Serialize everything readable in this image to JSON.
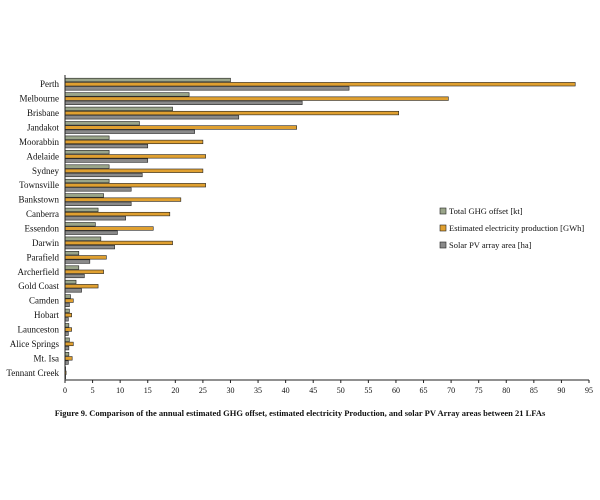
{
  "chart_data": {
    "type": "bar",
    "orientation": "horizontal",
    "categories": [
      "Perth",
      "Melbourne",
      "Brisbane",
      "Jandakot",
      "Moorabbin",
      "Adelaide",
      "Sydney",
      "Townsville",
      "Bankstown",
      "Canberra",
      "Essendon",
      "Darwin",
      "Parafield",
      "Archerfield",
      "Gold Coast",
      "Camden",
      "Hobart",
      "Launceston",
      "Alice Springs",
      "Mt. Isa",
      "Tennant Creek"
    ],
    "series": [
      {
        "name": "Total GHG offset [kt]",
        "color": "#9aa58a",
        "values": [
          30,
          22.5,
          19.5,
          13.5,
          8,
          8,
          8,
          8,
          7,
          6,
          5.5,
          6.5,
          2.5,
          2.5,
          2,
          1,
          0.8,
          0.7,
          0.8,
          0.7,
          0.1
        ]
      },
      {
        "name": "Estimated electricity production [GWh]",
        "color": "#e0a030",
        "values": [
          92.5,
          69.5,
          60.5,
          42,
          25,
          25.5,
          25,
          25.5,
          21,
          19,
          16,
          19.5,
          7.5,
          7,
          6,
          1.5,
          1.2,
          1.2,
          1.5,
          1.3,
          0.2
        ]
      },
      {
        "name": "Solar PV array area [ha]",
        "color": "#8a8a8a",
        "values": [
          51.5,
          43,
          31.5,
          23.5,
          15,
          15,
          14,
          12,
          12,
          11,
          9.5,
          9,
          4.5,
          3.5,
          3,
          0.8,
          0.6,
          0.6,
          0.7,
          0.6,
          0.1
        ]
      }
    ],
    "xticks": [
      0,
      5,
      10,
      15,
      20,
      25,
      30,
      35,
      40,
      45,
      50,
      55,
      60,
      65,
      70,
      75,
      80,
      85,
      90,
      95
    ],
    "xlim": [
      0,
      95
    ],
    "legend_position": "right",
    "grid": false,
    "caption": "Figure 9. Comparison of the annual estimated GHG offset, estimated electricity Production, and solar PV Array areas between 21 LFAs"
  }
}
